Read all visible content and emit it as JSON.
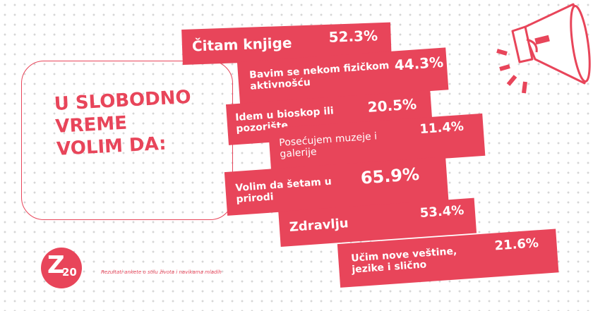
{
  "heading": {
    "line1": "U SLOBODNO",
    "line2": "VREME",
    "line3": "VOLIM DA:"
  },
  "footnote": "Rezultati ankete o stilu života i navikama mladih",
  "logo": {
    "letter": "Z",
    "number": "20"
  },
  "colors": {
    "accent": "#e8455a",
    "text_on_accent": "#ffffff",
    "background": "#ffffff",
    "dots": "#d6d6d6"
  },
  "icons": [
    "megaphone-icon"
  ],
  "chart_data": {
    "type": "bar",
    "title": "",
    "categories": [
      "Čitam knjige",
      "Bavim se nekom fizičkom aktivnošću",
      "Idem u bioskop ili pozorište",
      "Posećujem muzeje i galerije",
      "Volim da šetam u prirodi",
      "Zdravlju",
      "Učim nove veštine, jezike i slično"
    ],
    "values": [
      52.3,
      44.3,
      20.5,
      11.4,
      65.9,
      53.4,
      21.6
    ],
    "value_labels": [
      "52.3%",
      "44.3%",
      "20.5%",
      "11.4%",
      "65.9%",
      "53.4%",
      "21.6%"
    ],
    "unit": "%"
  }
}
